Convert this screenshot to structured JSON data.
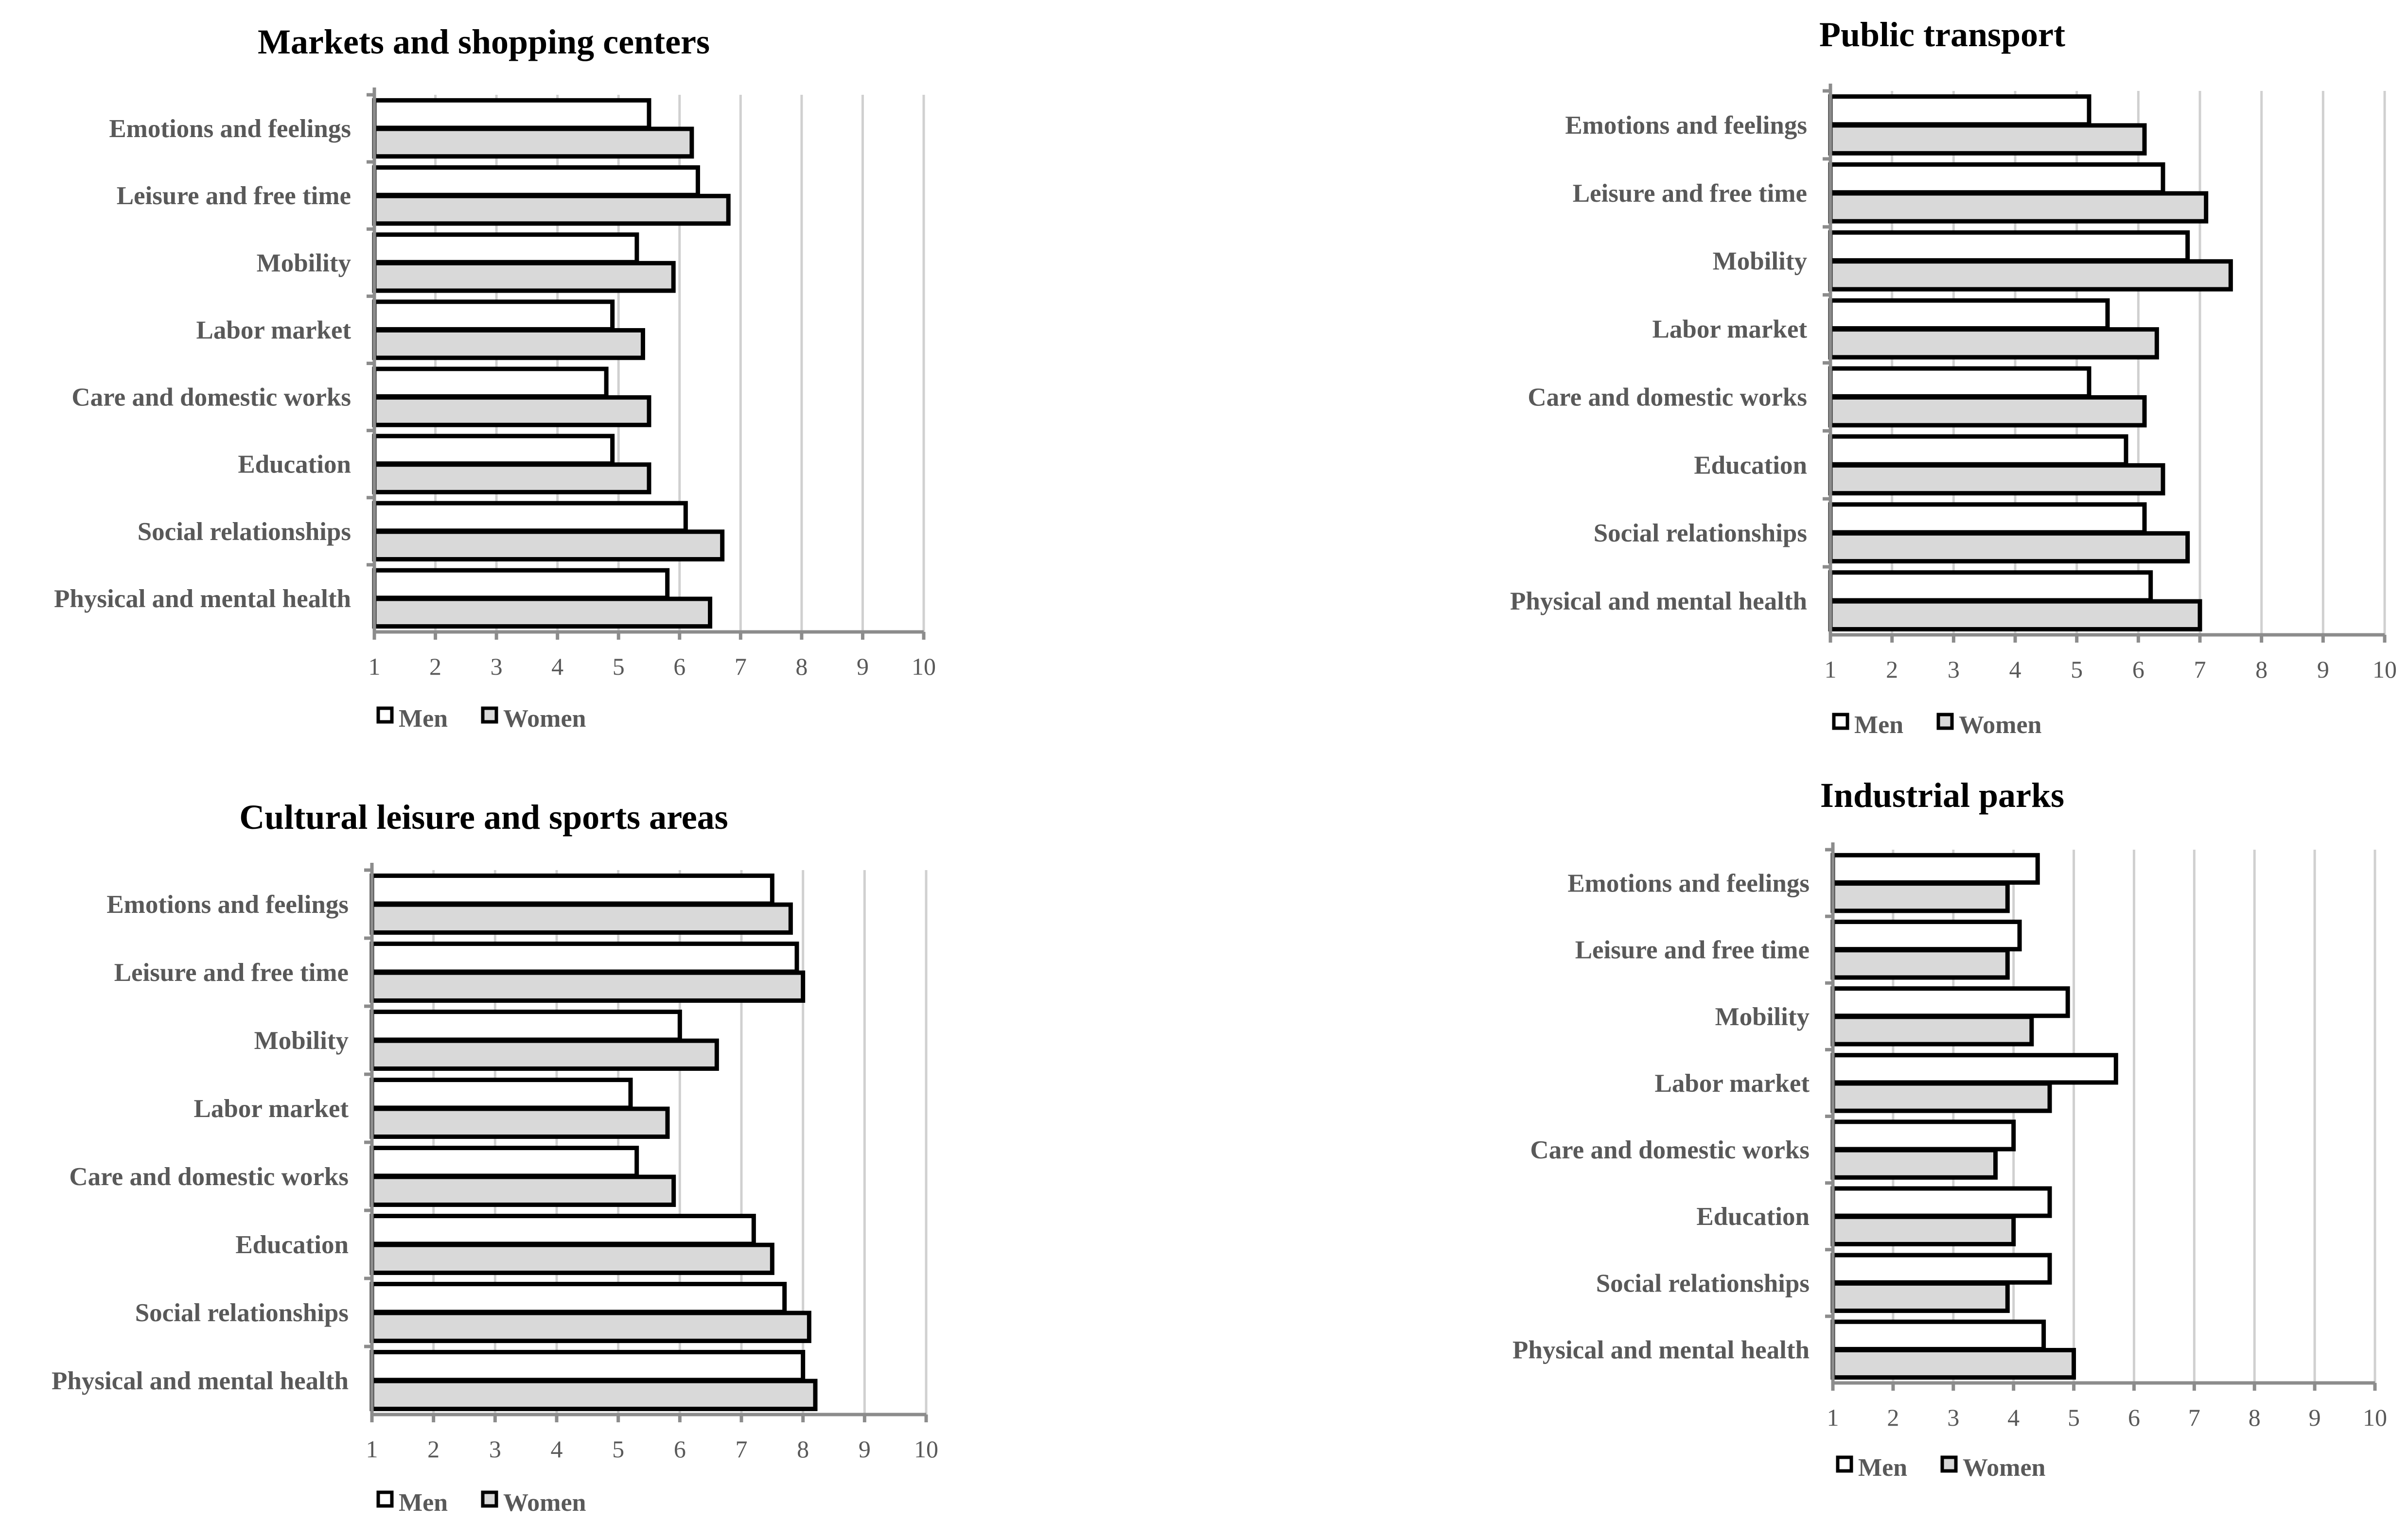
{
  "colors": {
    "men": "#ffffff",
    "women": "#d9d9d9",
    "bar_stroke": "#000000",
    "grid": "#d0d0d0",
    "axis": "#8c8c8c",
    "label": "#595959",
    "title": "#000000"
  },
  "chart_data": [
    {
      "type": "bar",
      "orientation": "horizontal",
      "title": "Markets and shopping centers",
      "categories": [
        "Emotions and feelings",
        "Leisure and free time",
        "Mobility",
        "Labor market",
        "Care and domestic works",
        "Education",
        "Social relationships",
        "Physical and mental health"
      ],
      "series": [
        {
          "name": "Men",
          "values": [
            5.5,
            6.3,
            5.3,
            4.9,
            4.8,
            4.9,
            6.1,
            5.8
          ]
        },
        {
          "name": "Women",
          "values": [
            6.2,
            6.8,
            5.9,
            5.4,
            5.5,
            5.5,
            6.7,
            6.5
          ]
        }
      ],
      "xlim": [
        1,
        10
      ],
      "ticks": [
        "1",
        "2",
        "3",
        "4",
        "5",
        "6",
        "7",
        "8",
        "9",
        "10"
      ],
      "grid": true,
      "legend": "bottom-left"
    },
    {
      "type": "bar",
      "orientation": "horizontal",
      "title": "Public transport",
      "categories": [
        "Emotions and feelings",
        "Leisure and free time",
        "Mobility",
        "Labor market",
        "Care and domestic works",
        "Education",
        "Social relationships",
        "Physical and mental health"
      ],
      "series": [
        {
          "name": "Men",
          "values": [
            5.2,
            6.4,
            6.8,
            5.5,
            5.2,
            5.8,
            6.1,
            6.2
          ]
        },
        {
          "name": "Women",
          "values": [
            6.1,
            7.1,
            7.5,
            6.3,
            6.1,
            6.4,
            6.8,
            7.0
          ]
        }
      ],
      "xlim": [
        1,
        10
      ],
      "ticks": [
        "1",
        "2",
        "3",
        "4",
        "5",
        "6",
        "7",
        "8",
        "9",
        "10"
      ],
      "grid": true,
      "legend": "bottom-left"
    },
    {
      "type": "bar",
      "orientation": "horizontal",
      "title": "Cultural leisure and sports areas",
      "categories": [
        "Emotions and feelings",
        "Leisure and free time",
        "Mobility",
        "Labor market",
        "Care and domestic works",
        "Education",
        "Social relationships",
        "Physical and mental health"
      ],
      "series": [
        {
          "name": "Men",
          "values": [
            7.5,
            7.9,
            6.0,
            5.2,
            5.3,
            7.2,
            7.7,
            8.0
          ]
        },
        {
          "name": "Women",
          "values": [
            7.8,
            8.0,
            6.6,
            5.8,
            5.9,
            7.5,
            8.1,
            8.2
          ]
        }
      ],
      "xlim": [
        1,
        10
      ],
      "ticks": [
        "1",
        "2",
        "3",
        "4",
        "5",
        "6",
        "7",
        "8",
        "9",
        "10"
      ],
      "grid": true,
      "legend": "bottom-left"
    },
    {
      "type": "bar",
      "orientation": "horizontal",
      "title": "Industrial parks",
      "categories": [
        "Emotions and feelings",
        "Leisure and free time",
        "Mobility",
        "Labor market",
        "Care and domestic works",
        "Education",
        "Social relationships",
        "Physical and mental health"
      ],
      "series": [
        {
          "name": "Men",
          "values": [
            4.4,
            4.1,
            4.9,
            5.7,
            4.0,
            4.6,
            4.6,
            4.5
          ]
        },
        {
          "name": "Women",
          "values": [
            3.9,
            3.9,
            4.3,
            4.6,
            3.7,
            4.0,
            3.9,
            5.0
          ]
        }
      ],
      "xlim": [
        1,
        10
      ],
      "ticks": [
        "1",
        "2",
        "3",
        "4",
        "5",
        "6",
        "7",
        "8",
        "9",
        "10"
      ],
      "grid": true,
      "legend": "bottom-left"
    }
  ]
}
